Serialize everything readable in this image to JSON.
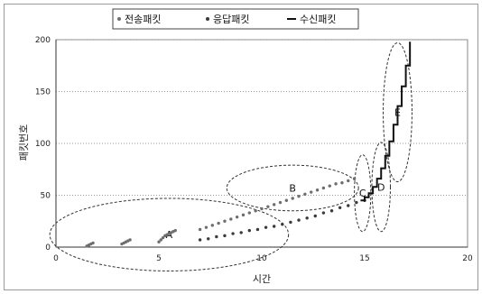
{
  "chart_data": {
    "type": "scatter",
    "title": "",
    "xlabel": "시간",
    "ylabel": "패킷번호",
    "xlim": [
      0,
      20
    ],
    "ylim": [
      0,
      200
    ],
    "x_ticks": [
      0,
      5,
      10,
      15,
      20
    ],
    "y_ticks": [
      0,
      50,
      100,
      150,
      200
    ],
    "grid": "horizontal dotted",
    "legend_position": "top",
    "series": [
      {
        "name": "전송패킷",
        "color": "#6e6e6e",
        "style": "dots",
        "x": [
          1.5,
          1.6,
          1.7,
          1.8,
          3.2,
          3.3,
          3.4,
          3.5,
          3.6,
          5.0,
          5.1,
          5.2,
          5.3,
          5.4,
          5.5,
          5.6,
          5.7,
          5.8,
          7.0,
          7.3,
          7.6,
          7.9,
          8.2,
          8.5,
          8.8,
          9.1,
          9.4,
          9.7,
          10.0,
          10.3,
          10.6,
          10.9,
          11.2,
          11.5,
          11.8,
          12.1,
          12.4,
          12.7,
          13.0,
          13.3,
          13.6,
          13.9,
          14.2,
          14.5
        ],
        "y": [
          1,
          2,
          3,
          4,
          3,
          4,
          5,
          6,
          7,
          5,
          7,
          9,
          11,
          12,
          13,
          14,
          15,
          16,
          17,
          19,
          21,
          23,
          25,
          27,
          29,
          31,
          33,
          35,
          37,
          39,
          41,
          43,
          45,
          47,
          49,
          51,
          53,
          55,
          57,
          59,
          61,
          62,
          64,
          66
        ]
      },
      {
        "name": "응답패킷",
        "color": "#3a3a3a",
        "style": "dots",
        "x": [
          7.0,
          7.4,
          7.8,
          8.2,
          8.6,
          9.0,
          9.4,
          9.8,
          10.2,
          10.6,
          11.0,
          11.4,
          11.8,
          12.2,
          12.6,
          13.0,
          13.4,
          13.8,
          14.2,
          14.6,
          15.0
        ],
        "y": [
          7,
          8,
          10,
          11,
          13,
          14,
          16,
          17,
          19,
          20,
          22,
          24,
          26,
          28,
          30,
          33,
          35,
          38,
          40,
          43,
          45
        ]
      },
      {
        "name": "수신패킷",
        "color": "#111111",
        "style": "step-line",
        "x": [
          14.8,
          15.0,
          15.0,
          15.2,
          15.2,
          15.4,
          15.4,
          15.6,
          15.6,
          15.8,
          15.8,
          16.0,
          16.0,
          16.2,
          16.2,
          16.4,
          16.4,
          16.6,
          16.6,
          16.8,
          16.8,
          17.0,
          17.0,
          17.2,
          17.2
        ],
        "y": [
          45,
          45,
          48,
          48,
          52,
          52,
          58,
          58,
          66,
          66,
          76,
          76,
          88,
          88,
          102,
          102,
          118,
          118,
          136,
          136,
          155,
          155,
          175,
          175,
          198
        ]
      }
    ],
    "annotations": [
      {
        "label": "A",
        "cx": 5.5,
        "cy": 12,
        "rx": 5.8,
        "ry": 35
      },
      {
        "label": "B",
        "cx": 11.5,
        "cy": 57,
        "rx": 3.2,
        "ry": 22
      },
      {
        "label": "C",
        "cx": 14.9,
        "cy": 52,
        "rx": 0.4,
        "ry": 37
      },
      {
        "label": "D",
        "cx": 15.8,
        "cy": 58,
        "rx": 0.45,
        "ry": 43
      },
      {
        "label": "E",
        "cx": 16.6,
        "cy": 130,
        "rx": 0.7,
        "ry": 67
      }
    ]
  }
}
